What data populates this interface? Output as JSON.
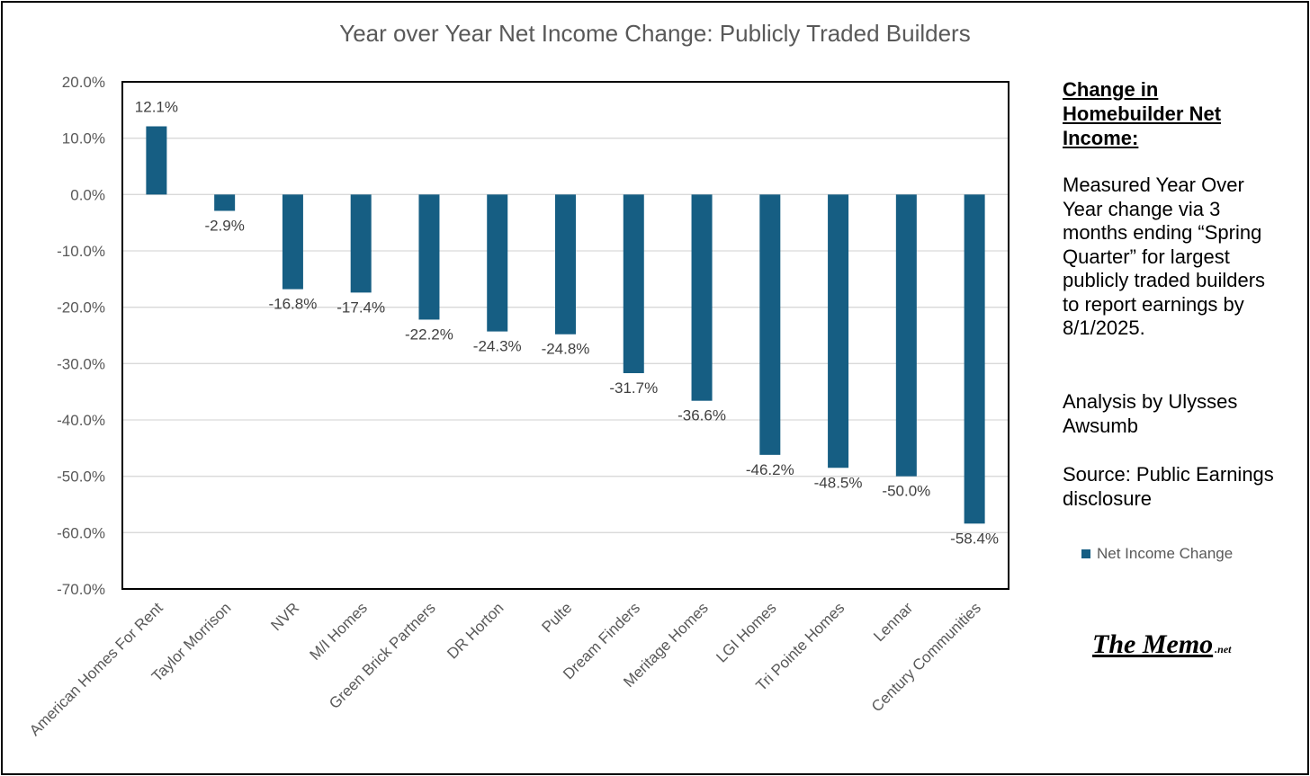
{
  "chart_data": {
    "type": "bar",
    "title": "Year over Year Net Income Change: Publicly Traded Builders",
    "categories": [
      "American Homes For Rent",
      "Taylor Morrison",
      "NVR",
      "M/I Homes",
      "Green Brick Partners",
      "DR Horton",
      "Pulte",
      "Dream Finders",
      "Meritage Homes",
      "LGI Homes",
      "Tri Pointe Homes",
      "Lennar",
      "Century Communities"
    ],
    "series": [
      {
        "name": "Net Income Change",
        "values": [
          12.1,
          -2.9,
          -16.8,
          -17.4,
          -22.2,
          -24.3,
          -24.8,
          -31.7,
          -36.6,
          -46.2,
          -48.5,
          -50.0,
          -58.4
        ],
        "labels": [
          "12.1%",
          "-2.9%",
          "-16.8%",
          "-17.4%",
          "-22.2%",
          "-24.3%",
          "-24.8%",
          "-31.7%",
          "-36.6%",
          "-46.2%",
          "-48.5%",
          "-50.0%",
          "-58.4%"
        ]
      }
    ],
    "ylim": [
      -70,
      20
    ],
    "yticks": [
      20,
      10,
      0,
      -10,
      -20,
      -30,
      -40,
      -50,
      -60,
      -70
    ],
    "ytick_labels": [
      "20.0%",
      "10.0%",
      "0.0%",
      "-10.0%",
      "-20.0%",
      "-30.0%",
      "-40.0%",
      "-50.0%",
      "-60.0%",
      "-70.0%"
    ],
    "xlabel": "",
    "ylabel": "",
    "grid": true,
    "legend": "right",
    "bar_color": "#165e83"
  },
  "sidebar": {
    "heading": "Change in Homebuilder Net Income:",
    "description": "Measured Year Over Year change via 3 months ending “Spring Quarter” for largest publicly traded builders to report earnings by 8/1/2025.",
    "analysis": "Analysis by Ulysses Awsumb",
    "source": "Source: Public Earnings disclosure"
  },
  "legend": {
    "label": "Net Income Change"
  },
  "logo": {
    "main": "The Memo",
    "suffix": ".net"
  }
}
